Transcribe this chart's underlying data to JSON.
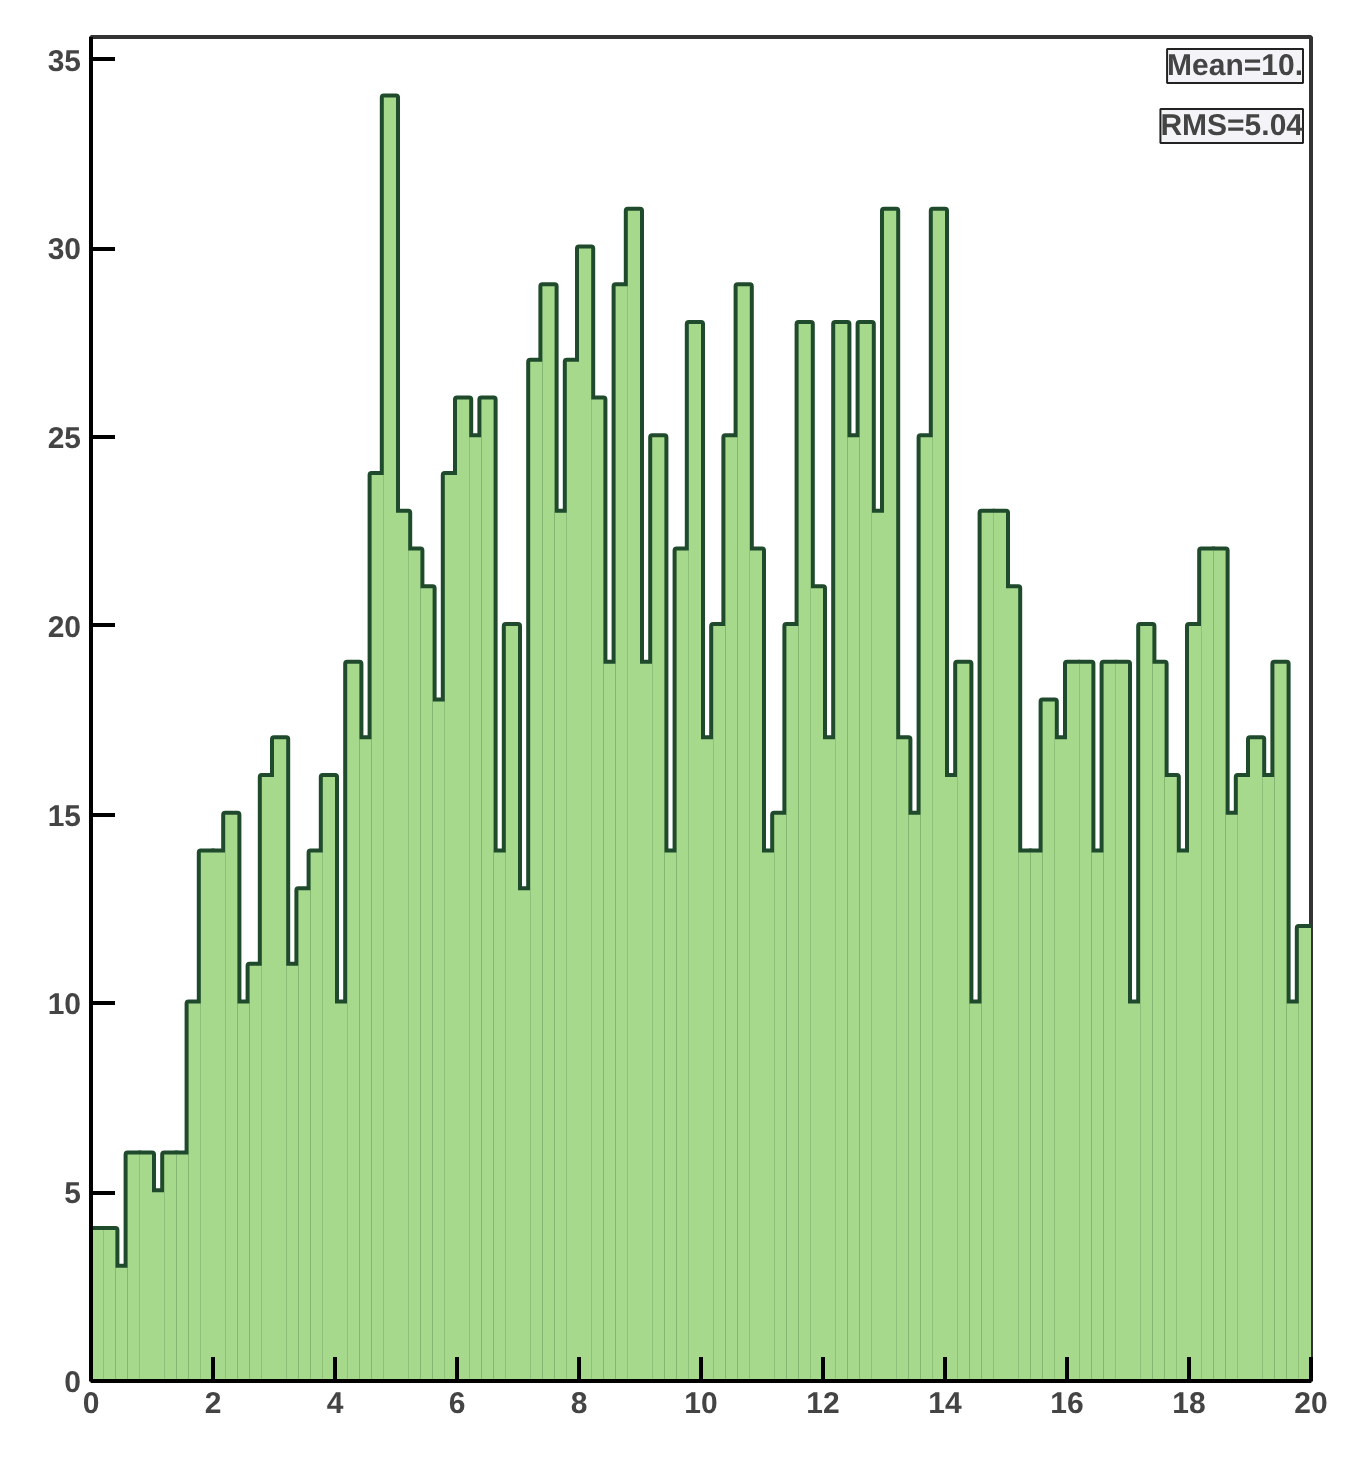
{
  "chart_data": {
    "type": "histogram",
    "bins": [
      0,
      0.2,
      0.4,
      0.6,
      0.8,
      1,
      1.2,
      1.4,
      1.6,
      1.8,
      2,
      2.2,
      2.4,
      2.6,
      2.8,
      3,
      3.2,
      3.4,
      3.6,
      3.8,
      4,
      4.2,
      4.4,
      4.6,
      4.8,
      5,
      5.2,
      5.4,
      5.6,
      5.8,
      6,
      6.2,
      6.4,
      6.6,
      6.8,
      7,
      7.2,
      7.4,
      7.6,
      7.8,
      8,
      8.2,
      8.4,
      8.6,
      8.8,
      9,
      9.2,
      9.4,
      9.6,
      9.8,
      10,
      10.2,
      10.4,
      10.6,
      10.8,
      11,
      11.2,
      11.4,
      11.6,
      11.8,
      12,
      12.2,
      12.4,
      12.6,
      12.8,
      13,
      13.2,
      13.4,
      13.6,
      13.8,
      14,
      14.2,
      14.4,
      14.6,
      14.8,
      15,
      15.2,
      15.4,
      15.6,
      15.8,
      16,
      16.2,
      16.4,
      16.6,
      16.8,
      17,
      17.2,
      17.4,
      17.6,
      17.8,
      18,
      18.2,
      18.4,
      18.6,
      18.8,
      19,
      19.2,
      19.4,
      19.6,
      19.8,
      20
    ],
    "values": [
      4,
      4,
      3,
      6,
      6,
      5,
      6,
      6,
      10,
      14,
      14,
      15,
      10,
      11,
      16,
      17,
      11,
      13,
      14,
      16,
      10,
      19,
      17,
      24,
      34,
      23,
      22,
      21,
      18,
      24,
      26,
      25,
      26,
      14,
      20,
      13,
      27,
      29,
      23,
      27,
      30,
      26,
      19,
      29,
      31,
      19,
      25,
      14,
      22,
      28,
      17,
      20,
      25,
      29,
      22,
      14,
      15,
      20,
      28,
      21,
      17,
      28,
      25,
      28,
      23,
      31,
      17,
      15,
      25,
      31,
      16,
      19,
      10,
      23,
      23,
      21,
      14,
      14,
      18,
      17,
      19,
      19,
      14,
      19,
      19,
      10,
      20,
      19,
      16,
      14,
      20,
      22,
      22,
      15,
      16,
      17,
      16,
      19,
      10,
      12
    ],
    "color": "#a6d98c",
    "xlim": [
      0,
      20
    ],
    "ylim": [
      0,
      35.6
    ],
    "xticks": [
      0,
      2,
      4,
      6,
      8,
      10,
      12,
      14,
      16,
      18,
      20
    ],
    "yticks": [
      0,
      5,
      10,
      15,
      20,
      25,
      30,
      35
    ],
    "grid": false,
    "annotations": [
      "Mean=10.",
      "RMS=5.04"
    ]
  }
}
